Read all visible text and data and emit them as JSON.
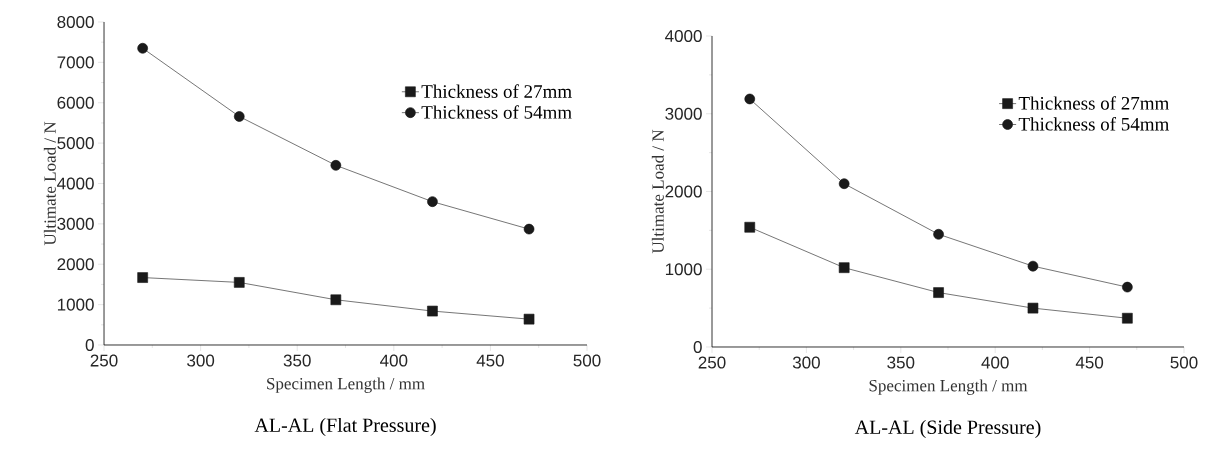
{
  "chart_data": [
    {
      "type": "line",
      "title": "AL-AL (Flat Pressure)",
      "xlabel": "Specimen Length / mm",
      "ylabel": "Ultimate Load / N",
      "x": [
        270,
        320,
        370,
        420,
        470
      ],
      "series": [
        {
          "name": "Thickness of 27mm",
          "color": "#1a1a1a",
          "marker": "square",
          "values": [
            1670,
            1550,
            1120,
            840,
            640
          ]
        },
        {
          "name": "Thickness of 54mm",
          "color": "#1a1a1a",
          "marker": "circle",
          "values": [
            7350,
            5660,
            4450,
            3550,
            2870
          ]
        }
      ],
      "xlim": [
        250,
        500
      ],
      "ylim": [
        0,
        8000
      ],
      "xticks": [
        250,
        300,
        350,
        400,
        450,
        500
      ],
      "yticks": [
        0,
        1000,
        2000,
        3000,
        4000,
        5000,
        6000,
        7000,
        8000
      ],
      "legend": "top right"
    },
    {
      "type": "line",
      "title": "AL-AL (Side Pressure)",
      "xlabel": "Specimen Length / mm",
      "ylabel": "Ultimate Load / N",
      "x": [
        270,
        320,
        370,
        420,
        470
      ],
      "series": [
        {
          "name": "Thickness of 27mm",
          "color": "#1a1a1a",
          "marker": "square",
          "values": [
            1540,
            1020,
            700,
            500,
            370
          ]
        },
        {
          "name": "Thickness of 54mm",
          "color": "#1a1a1a",
          "marker": "circle",
          "values": [
            3190,
            2100,
            1450,
            1040,
            770
          ]
        }
      ],
      "xlim": [
        250,
        500
      ],
      "ylim": [
        0,
        4000
      ],
      "xticks": [
        250,
        300,
        350,
        400,
        450,
        500
      ],
      "yticks": [
        0,
        1000,
        2000,
        3000,
        4000
      ],
      "legend": "top right"
    }
  ]
}
